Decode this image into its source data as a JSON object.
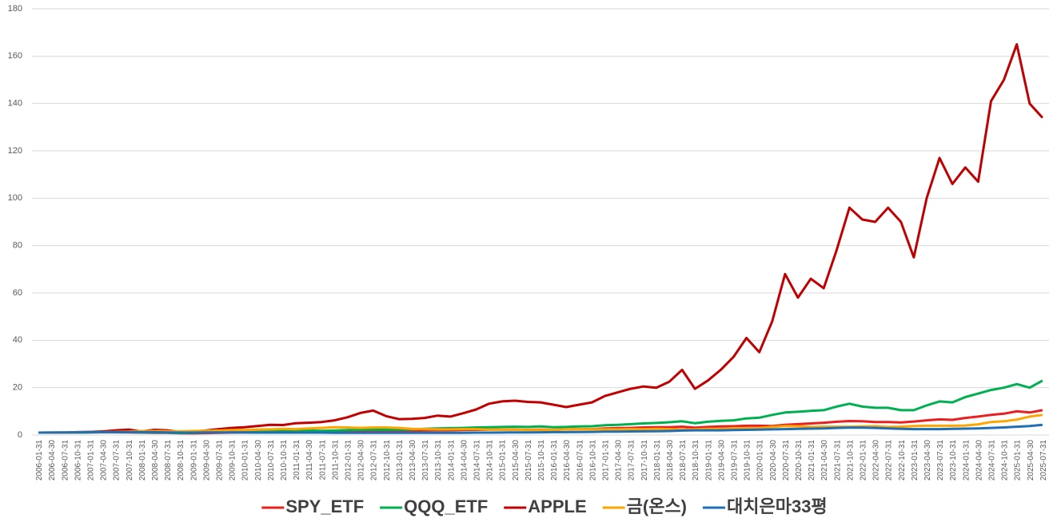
{
  "chart_data": {
    "type": "line",
    "categories": [
      "2006-01-31",
      "2006-04-30",
      "2006-07-31",
      "2006-10-31",
      "2007-01-31",
      "2007-04-30",
      "2007-07-31",
      "2007-10-31",
      "2008-01-31",
      "2008-04-30",
      "2008-07-31",
      "2008-10-31",
      "2009-01-31",
      "2009-04-30",
      "2009-07-31",
      "2009-10-31",
      "2010-01-31",
      "2010-04-30",
      "2010-07-31",
      "2010-10-31",
      "2011-01-31",
      "2011-04-30",
      "2011-07-31",
      "2011-10-31",
      "2012-01-31",
      "2012-04-30",
      "2012-07-31",
      "2012-10-31",
      "2013-01-31",
      "2013-04-30",
      "2013-07-31",
      "2013-10-31",
      "2014-01-31",
      "2014-04-30",
      "2014-07-31",
      "2014-10-31",
      "2015-01-31",
      "2015-04-30",
      "2015-07-31",
      "2015-10-31",
      "2016-01-31",
      "2016-04-30",
      "2016-07-31",
      "2016-10-31",
      "2017-01-31",
      "2017-04-30",
      "2017-07-31",
      "2017-10-31",
      "2018-01-31",
      "2018-04-30",
      "2018-07-31",
      "2018-10-31",
      "2019-01-31",
      "2019-04-30",
      "2019-07-31",
      "2019-10-31",
      "2020-01-31",
      "2020-04-30",
      "2020-07-31",
      "2020-10-31",
      "2021-01-31",
      "2021-04-30",
      "2021-07-31",
      "2021-10-31",
      "2022-01-31",
      "2022-04-30",
      "2022-07-31",
      "2022-10-31",
      "2023-01-31",
      "2023-04-30",
      "2023-07-31",
      "2023-10-31",
      "2024-01-31",
      "2024-04-30",
      "2024-07-31",
      "2024-10-31",
      "2025-01-31",
      "2025-04-30",
      "2025-07-31"
    ],
    "series": [
      {
        "name": "SPY_ETF",
        "color": "#e8201f",
        "values": [
          1,
          1,
          1,
          1.05,
          1.1,
          1.15,
          1.15,
          1.1,
          1.0,
          0.95,
          0.9,
          0.75,
          0.7,
          0.8,
          0.95,
          1.0,
          1.1,
          1.0,
          1.1,
          1.2,
          1.3,
          1.3,
          1.2,
          1.25,
          1.4,
          1.4,
          1.5,
          1.5,
          1.7,
          1.8,
          1.9,
          2.0,
          2.0,
          2.1,
          2.2,
          2.3,
          2.3,
          2.3,
          2.2,
          2.3,
          2.2,
          2.4,
          2.5,
          2.5,
          2.8,
          2.9,
          3.0,
          3.2,
          3.3,
          3.3,
          3.5,
          3.1,
          3.4,
          3.6,
          3.7,
          3.9,
          3.9,
          3.8,
          4.3,
          4.6,
          4.9,
          5.2,
          5.6,
          5.9,
          5.8,
          5.5,
          5.5,
          5.3,
          5.7,
          6.2,
          6.6,
          6.4,
          7.2,
          7.8,
          8.5,
          9,
          10,
          9.5,
          10.5
        ]
      },
      {
        "name": "QQQ_ETF",
        "color": "#00b050",
        "values": [
          1,
          1,
          1,
          1,
          1.1,
          1.2,
          1.2,
          1.3,
          1.1,
          1.1,
          1.0,
          0.8,
          0.9,
          1.1,
          1.3,
          1.5,
          1.5,
          1.5,
          1.7,
          1.8,
          1.9,
          1.9,
          1.8,
          1.9,
          2.1,
          2.2,
          2.3,
          2.2,
          2.3,
          2.4,
          2.6,
          2.8,
          2.9,
          3.0,
          3.2,
          3.3,
          3.4,
          3.5,
          3.4,
          3.6,
          3.3,
          3.4,
          3.6,
          3.7,
          4.1,
          4.3,
          4.6,
          4.9,
          5.1,
          5.4,
          5.8,
          5.0,
          5.6,
          6.0,
          6.2,
          7.0,
          7.3,
          8.5,
          9.5,
          9.8,
          10.2,
          10.5,
          12,
          13.2,
          12,
          11.5,
          11.5,
          10.5,
          10.5,
          12.5,
          14.2,
          13.8,
          16,
          17.5,
          19,
          20,
          21.5,
          20,
          23
        ]
      },
      {
        "name": "APPLE",
        "color": "#c00000",
        "values": [
          1,
          1,
          1,
          1.2,
          1.3,
          1.5,
          2.0,
          2.3,
          1.5,
          2.2,
          2.0,
          1.3,
          1.4,
          1.9,
          2.5,
          3.0,
          3.3,
          3.8,
          4.3,
          4.2,
          5.0,
          5.2,
          5.5,
          6.2,
          7.5,
          9.3,
          10.3,
          8.0,
          6.7,
          6.8,
          7.2,
          8.2,
          7.8,
          9.2,
          10.8,
          13.2,
          14.2,
          14.5,
          14.0,
          13.8,
          12.8,
          11.8,
          12.8,
          13.8,
          16.5,
          18,
          19.5,
          20.5,
          20,
          22.5,
          27.5,
          19.5,
          23,
          27.5,
          33,
          41,
          35,
          48,
          68,
          58,
          66,
          62,
          78,
          96,
          91,
          90,
          96,
          90,
          75,
          100,
          117,
          106,
          113,
          107,
          141,
          150,
          165,
          140,
          134
        ]
      },
      {
        "name": "금(온스)",
        "color": "#ffa500",
        "values": [
          1,
          1.1,
          1.1,
          1.1,
          1.2,
          1.2,
          1.3,
          1.4,
          1.7,
          1.7,
          1.6,
          1.5,
          1.7,
          1.8,
          1.9,
          2.1,
          2.1,
          2.3,
          2.4,
          2.6,
          2.5,
          2.8,
          3.0,
          3.3,
          3.2,
          3.0,
          3.2,
          3.2,
          3.0,
          2.6,
          2.5,
          2.4,
          2.4,
          2.5,
          2.5,
          2.3,
          2.3,
          2.3,
          2.1,
          2.1,
          2.2,
          2.4,
          2.5,
          2.4,
          2.4,
          2.4,
          2.5,
          2.5,
          2.6,
          2.5,
          2.3,
          2.4,
          2.6,
          2.6,
          2.9,
          2.9,
          3.0,
          3.4,
          3.8,
          3.7,
          3.4,
          3.5,
          3.5,
          3.5,
          3.6,
          3.7,
          3.4,
          3.5,
          3.8,
          3.9,
          3.9,
          3.9,
          4.0,
          4.5,
          5.5,
          5.8,
          6.5,
          7.8,
          8.5
        ]
      },
      {
        "name": "대치은마33평",
        "color": "#1f6fb5",
        "values": [
          1,
          1.05,
          1.1,
          1.1,
          1.2,
          1.2,
          1.2,
          1.2,
          1.2,
          1.2,
          1.1,
          1.0,
          1.0,
          1.1,
          1.1,
          1.1,
          1.1,
          1.0,
          1.0,
          1.0,
          1.0,
          1.0,
          1.0,
          0.95,
          0.95,
          0.9,
          0.9,
          0.9,
          0.9,
          0.9,
          0.9,
          0.95,
          0.95,
          0.95,
          1.0,
          1.0,
          1.05,
          1.1,
          1.1,
          1.15,
          1.2,
          1.2,
          1.25,
          1.3,
          1.4,
          1.45,
          1.5,
          1.55,
          1.6,
          1.7,
          1.9,
          2.0,
          2.0,
          2.0,
          2.1,
          2.2,
          2.3,
          2.4,
          2.5,
          2.6,
          2.7,
          2.8,
          3.0,
          3.1,
          3.1,
          3.0,
          2.8,
          2.6,
          2.5,
          2.5,
          2.5,
          2.6,
          2.7,
          2.8,
          3.0,
          3.2,
          3.5,
          3.8,
          4.3
        ]
      }
    ],
    "ylim": [
      0,
      180
    ],
    "yticks": [
      0,
      20,
      40,
      60,
      80,
      100,
      120,
      140,
      160,
      180
    ],
    "grid": true,
    "legend": "bottom"
  }
}
